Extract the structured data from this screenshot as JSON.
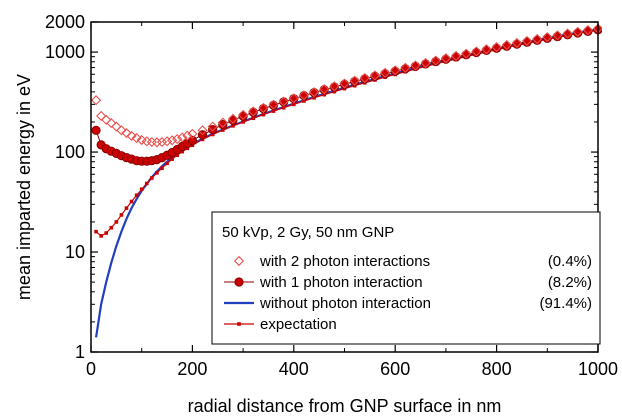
{
  "chart_data": {
    "type": "scatter",
    "title": "",
    "xlabel": "radial distance from GNP surface in nm",
    "ylabel": "mean imparted energy in eV",
    "xlim": [
      0,
      1000
    ],
    "ylim": [
      1,
      2000
    ],
    "yscale": "log",
    "grid": false,
    "legend_placement": "bottom-right",
    "x_ticks": [
      0,
      200,
      400,
      600,
      800,
      1000
    ],
    "x_tick_labels": [
      "0",
      "200",
      "400",
      "600",
      "800",
      "1000"
    ],
    "y_ticks": [
      1,
      10,
      100,
      1000,
      2000
    ],
    "y_tick_labels": [
      "1",
      "10",
      "100",
      "1000",
      "2000"
    ],
    "legend_title": "50 kVp, 2 Gy, 50 nm GNP",
    "series": [
      {
        "name": "with 2 photon interactions",
        "legend_pct": "(0.4%)",
        "style": "open-diamond",
        "color": "#e8504c",
        "x": [
          10,
          20,
          30,
          40,
          50,
          60,
          70,
          80,
          90,
          100,
          110,
          120,
          130,
          140,
          150,
          160,
          170,
          180,
          190,
          200,
          220,
          240,
          260,
          280,
          300,
          320,
          340,
          360,
          380,
          400,
          420,
          440,
          460,
          480,
          500,
          520,
          540,
          560,
          580,
          600,
          620,
          640,
          660,
          680,
          700,
          720,
          740,
          760,
          780,
          800,
          820,
          840,
          860,
          880,
          900,
          920,
          940,
          960,
          980,
          1000
        ],
        "y": [
          330,
          230,
          210,
          195,
          180,
          165,
          155,
          145,
          138,
          132,
          128,
          126,
          125,
          126,
          128,
          131,
          135,
          140,
          146,
          152,
          165,
          180,
          197,
          215,
          235,
          255,
          276,
          298,
          320,
          345,
          370,
          397,
          425,
          455,
          485,
          517,
          550,
          584,
          620,
          657,
          696,
          736,
          778,
          822,
          868,
          915,
          964,
          1015,
          1068,
          1122,
          1178,
          1235,
          1293,
          1352,
          1412,
          1473,
          1535,
          1597,
          1660,
          1720
        ]
      },
      {
        "name": "with 1 photon interaction",
        "legend_pct": "(8.2%)",
        "style": "filled-circle-line",
        "color": "#cc0000",
        "x": [
          10,
          20,
          30,
          40,
          50,
          60,
          70,
          80,
          90,
          100,
          110,
          120,
          130,
          140,
          150,
          160,
          170,
          180,
          190,
          200,
          220,
          240,
          260,
          280,
          300,
          320,
          340,
          360,
          380,
          400,
          420,
          440,
          460,
          480,
          500,
          520,
          540,
          560,
          580,
          600,
          620,
          640,
          660,
          680,
          700,
          720,
          740,
          760,
          780,
          800,
          820,
          840,
          860,
          880,
          900,
          920,
          940,
          960,
          980,
          1000
        ],
        "y": [
          165,
          118,
          108,
          102,
          97,
          92,
          88,
          85,
          82,
          81,
          81,
          82,
          84,
          88,
          93,
          99,
          106,
          114,
          122,
          131,
          149,
          168,
          188,
          208,
          229,
          250,
          272,
          294,
          318,
          342,
          367,
          393,
          420,
          448,
          477,
          508,
          540,
          573,
          608,
          644,
          682,
          721,
          762,
          804,
          848,
          894,
          941,
          990,
          1040,
          1092,
          1145,
          1200,
          1256,
          1313,
          1371,
          1430,
          1490,
          1551,
          1612,
          1670
        ]
      },
      {
        "name": "without photon interaction",
        "legend_pct": "(91.4%)",
        "style": "line",
        "color": "#1f3fbf",
        "x": [
          10,
          20,
          30,
          40,
          50,
          60,
          70,
          80,
          90,
          100,
          110,
          120,
          130,
          140,
          150,
          160,
          170,
          180,
          190,
          200,
          220,
          240,
          260,
          280,
          300,
          320,
          340,
          360,
          380,
          400,
          420,
          440,
          460,
          480,
          500,
          520,
          540,
          560,
          580,
          600,
          620,
          640,
          660,
          680,
          700,
          720,
          740,
          760,
          780,
          800,
          820,
          840,
          860,
          880,
          900,
          920,
          940,
          960,
          980,
          1000
        ],
        "y": [
          1.4,
          3.0,
          5.0,
          7.8,
          11.5,
          16,
          21.5,
          27.5,
          34,
          41,
          48,
          56,
          64,
          72,
          80,
          88,
          96,
          104,
          112,
          120,
          136,
          152,
          168,
          184,
          202,
          220,
          240,
          260,
          282,
          305,
          329,
          355,
          382,
          410,
          440,
          471,
          504,
          538,
          574,
          612,
          651,
          692,
          735,
          780,
          826,
          874,
          924,
          976,
          1029,
          1084,
          1140,
          1198,
          1257,
          1317,
          1378,
          1440,
          1503,
          1566,
          1628,
          1690
        ]
      },
      {
        "name": "expectation",
        "legend_pct": "",
        "style": "small-square-line",
        "color": "#cc0000",
        "x": [
          10,
          20,
          30,
          40,
          50,
          60,
          70,
          80,
          90,
          100,
          110,
          120,
          130,
          140,
          150,
          160,
          170,
          180,
          190,
          200,
          220,
          240,
          260,
          280,
          300,
          320,
          340,
          360,
          380,
          400,
          420,
          440,
          460,
          480,
          500,
          520,
          540,
          560,
          580,
          600,
          620,
          640,
          660,
          680,
          700,
          720,
          740,
          760,
          780,
          800,
          820,
          840,
          860,
          880,
          900,
          920,
          940,
          960,
          980,
          1000
        ],
        "y": [
          16,
          14.5,
          15.5,
          17.5,
          20,
          23.5,
          27.5,
          32,
          37,
          42.5,
          48.5,
          55,
          62,
          69,
          77,
          85,
          93,
          101,
          109,
          117,
          134,
          150,
          166,
          183,
          200,
          218,
          237,
          257,
          278,
          300,
          324,
          349,
          375,
          402,
          431,
          461,
          493,
          526,
          561,
          598,
          636,
          676,
          718,
          761,
          806,
          853,
          901,
          951,
          1002,
          1055,
          1110,
          1166,
          1223,
          1282,
          1342,
          1403,
          1465,
          1528,
          1591,
          1650
        ]
      }
    ]
  }
}
